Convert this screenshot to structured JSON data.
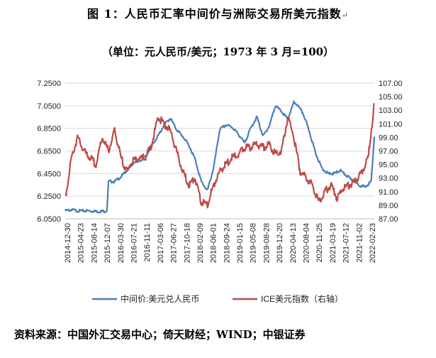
{
  "title": "图 1：人民币汇率中间价与洲际交易所美元指数",
  "subtitle": "（单位：元人民币/美元；1973 年 3 月=100）",
  "para_mark": "↵",
  "source": "资料来源：中国外汇交易中心；倚天财经；WIND；中银证券",
  "colors": {
    "cny": "#4a7ebb",
    "ice": "#be4b48"
  },
  "chart_data": {
    "type": "line",
    "x_ticks": [
      "2014-12-30",
      "2015-04-23",
      "2015-08-14",
      "2015-12-07",
      "2016-03-30",
      "2016-07-21",
      "2016-11-11",
      "2017-03-06",
      "2017-06-27",
      "2017-10-18",
      "2018-02-09",
      "2018-06-01",
      "2018-09-24",
      "2019-01-15",
      "2019-05-08",
      "2019-08-28",
      "2019-12-20",
      "2020-04-13",
      "2020-08-04",
      "2020-11-25",
      "2021-03-19",
      "2021-07-12",
      "2021-11-02",
      "2022-02-23"
    ],
    "y_left": {
      "min": 6.05,
      "max": 7.25,
      "ticks": [
        "6.0500",
        "6.2500",
        "6.4500",
        "6.6500",
        "6.8500",
        "7.0500",
        "7.2500"
      ]
    },
    "y_right": {
      "min": 87,
      "max": 107,
      "ticks": [
        "87.00",
        "89.00",
        "91.00",
        "93.00",
        "95.00",
        "97.00",
        "99.00",
        "101.00",
        "103.00",
        "105.00",
        "107.00"
      ]
    },
    "series": [
      {
        "name": "中间价:美元兑人民币",
        "axis": "left",
        "x": [
          0,
          0.02,
          0.04,
          0.06,
          0.08,
          0.1,
          0.12,
          0.135,
          0.14,
          0.16,
          0.18,
          0.2,
          0.22,
          0.24,
          0.26,
          0.28,
          0.3,
          0.32,
          0.34,
          0.36,
          0.38,
          0.4,
          0.42,
          0.44,
          0.46,
          0.48,
          0.5,
          0.52,
          0.54,
          0.56,
          0.58,
          0.6,
          0.62,
          0.64,
          0.66,
          0.68,
          0.7,
          0.72,
          0.74,
          0.75,
          0.77,
          0.79,
          0.81,
          0.83,
          0.85,
          0.87,
          0.89,
          0.91,
          0.93,
          0.95,
          0.97,
          0.99,
          1.0
        ],
        "values": [
          6.12,
          6.13,
          6.12,
          6.12,
          6.12,
          6.115,
          6.115,
          6.12,
          6.38,
          6.38,
          6.42,
          6.48,
          6.55,
          6.56,
          6.6,
          6.7,
          6.78,
          6.88,
          6.94,
          6.84,
          6.78,
          6.7,
          6.58,
          6.38,
          6.3,
          6.5,
          6.84,
          6.88,
          6.86,
          6.8,
          6.72,
          6.85,
          6.95,
          6.78,
          6.87,
          7.05,
          7.0,
          6.93,
          7.08,
          7.06,
          6.98,
          6.82,
          6.63,
          6.5,
          6.45,
          6.45,
          6.48,
          6.43,
          6.39,
          6.35,
          6.33,
          6.38,
          6.78
        ]
      },
      {
        "name": "ICE美元指数（右轴）",
        "axis": "right",
        "x": [
          0,
          0.02,
          0.04,
          0.06,
          0.08,
          0.1,
          0.12,
          0.14,
          0.16,
          0.18,
          0.2,
          0.22,
          0.24,
          0.26,
          0.28,
          0.3,
          0.32,
          0.34,
          0.36,
          0.38,
          0.4,
          0.42,
          0.44,
          0.46,
          0.48,
          0.5,
          0.52,
          0.54,
          0.56,
          0.58,
          0.6,
          0.62,
          0.64,
          0.66,
          0.68,
          0.7,
          0.72,
          0.74,
          0.76,
          0.78,
          0.8,
          0.82,
          0.84,
          0.86,
          0.88,
          0.9,
          0.92,
          0.94,
          0.96,
          0.97,
          0.98,
          0.99,
          1.0
        ],
        "values": [
          90,
          96,
          99,
          97,
          96,
          95,
          99,
          97,
          100,
          96,
          94,
          95.5,
          96,
          96,
          98,
          102,
          101,
          100,
          97,
          94,
          92,
          93,
          89.5,
          89,
          92,
          94,
          95,
          96,
          96.5,
          97.5,
          97.5,
          98,
          97.5,
          98,
          96.5,
          97,
          102,
          99,
          94,
          93,
          92,
          89.5,
          91,
          92,
          90,
          91.5,
          92,
          92.5,
          94,
          95,
          96,
          100,
          104
        ]
      }
    ]
  },
  "legend": {
    "cny": "中间价:美元兑人民币",
    "ice": "ICE美元指数（右轴）"
  }
}
